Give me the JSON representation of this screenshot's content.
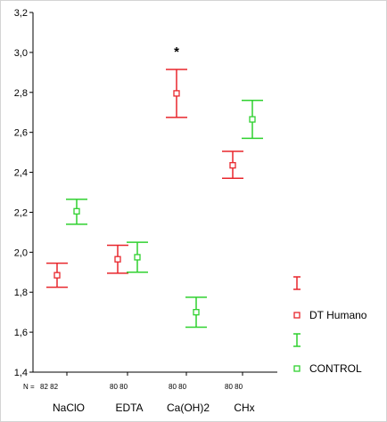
{
  "chart_data": {
    "type": "errorbar",
    "categories": [
      "NaClO",
      "EDTA",
      "Ca(OH)2",
      "CHx"
    ],
    "n_prefix": "N =",
    "n_labels": [
      "82 82",
      "80 80",
      "80 80",
      "80 80"
    ],
    "ylim": [
      1.4,
      3.2
    ],
    "yticks": [
      1.4,
      1.6,
      1.8,
      2.0,
      2.2,
      2.4,
      2.6,
      2.8,
      3.0,
      3.2
    ],
    "ytick_labels": [
      "1,4",
      "1,6",
      "1,8",
      "2,0",
      "2,2",
      "2,4",
      "2,6",
      "2,8",
      "3,0",
      "3,2"
    ],
    "series": [
      {
        "name": "DT Humano",
        "color": "#e8262c",
        "mean": [
          1.885,
          1.965,
          2.795,
          2.435
        ],
        "lower": [
          1.825,
          1.895,
          2.675,
          2.37
        ],
        "upper": [
          1.945,
          2.035,
          2.915,
          2.505
        ]
      },
      {
        "name": "CONTROL",
        "color": "#2fd12f",
        "mean": [
          2.205,
          1.975,
          1.7,
          2.665
        ],
        "lower": [
          2.14,
          1.9,
          1.625,
          2.57
        ],
        "upper": [
          2.265,
          2.05,
          1.775,
          2.76
        ]
      }
    ],
    "annotations": [
      {
        "text": "*",
        "category": "Ca(OH)2",
        "y": 3.0
      }
    ],
    "legend_position": "right"
  }
}
